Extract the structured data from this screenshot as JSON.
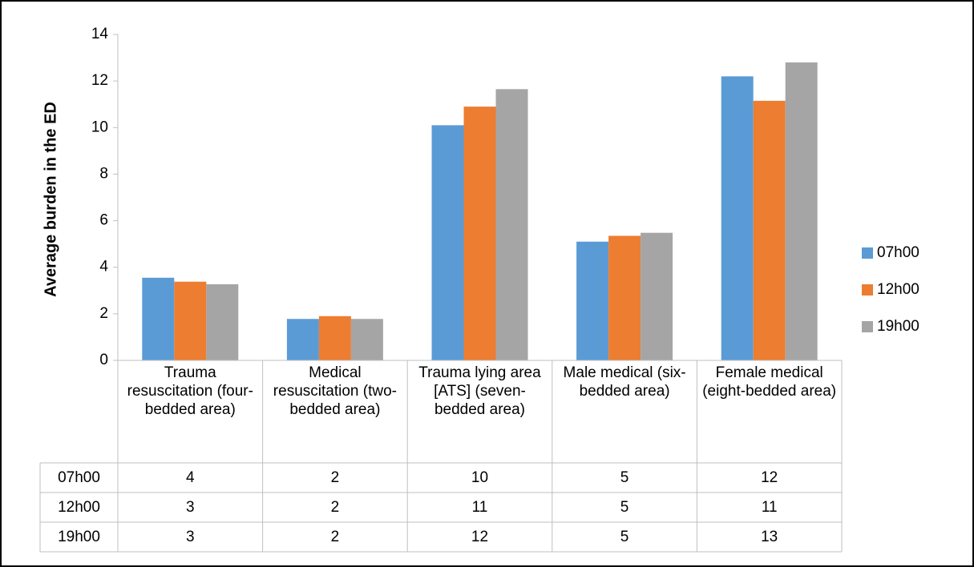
{
  "chart_data": {
    "type": "bar",
    "y_label": "Average burden in the ED",
    "categories": [
      "Trauma resuscitation (four-bedded area)",
      "Medical resuscitation (two-bedded area)",
      "Trauma lying area [ATS] (seven-bedded area)",
      "Male medical (six-bedded area)",
      "Female medical (eight-bedded area)"
    ],
    "series": [
      {
        "name": "07h00",
        "color": "#5b9bd5",
        "values": [
          3.55,
          1.78,
          10.1,
          5.1,
          12.2
        ],
        "value_labels": [
          "4",
          "2",
          "10",
          "5",
          "12"
        ]
      },
      {
        "name": "12h00",
        "color": "#ed7d31",
        "values": [
          3.38,
          1.9,
          10.9,
          5.35,
          11.15
        ],
        "value_labels": [
          "3",
          "2",
          "11",
          "5",
          "11"
        ]
      },
      {
        "name": "19h00",
        "color": "#a5a5a5",
        "values": [
          3.27,
          1.78,
          11.65,
          5.48,
          12.8
        ],
        "value_labels": [
          "3",
          "2",
          "12",
          "5",
          "13"
        ]
      }
    ],
    "ylim": [
      0,
      14
    ],
    "yticks": [
      0,
      2,
      4,
      6,
      8,
      10,
      12,
      14
    ],
    "legend": "right"
  }
}
